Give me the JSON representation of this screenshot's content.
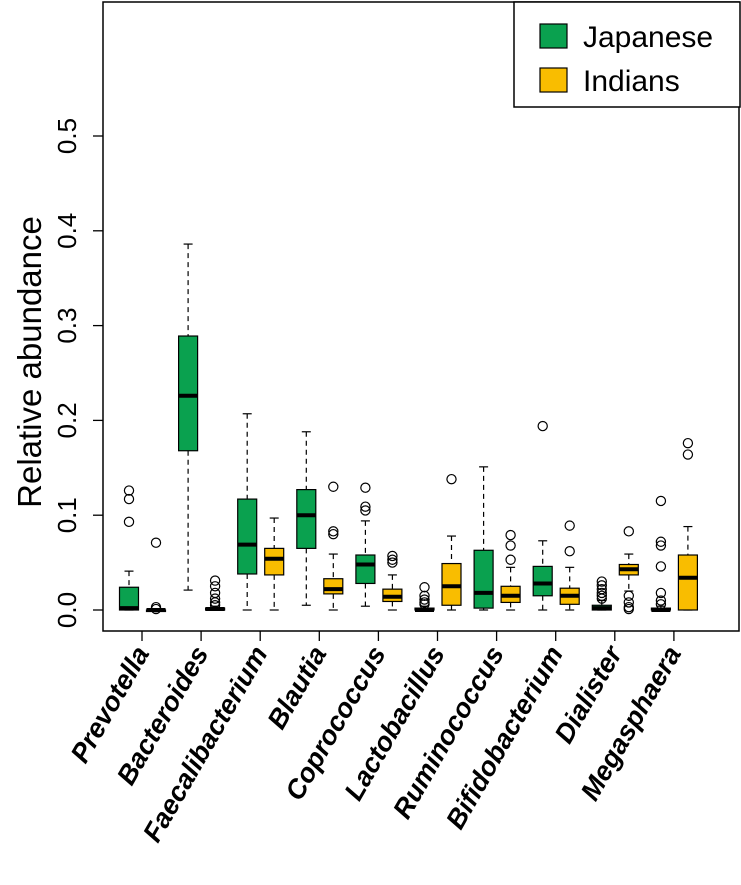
{
  "chart_data": {
    "type": "boxplot",
    "ylabel": "Relative abundance",
    "xlabel": "",
    "ylim": [
      -0.02,
      0.65
    ],
    "yticks": [
      0.0,
      0.1,
      0.2,
      0.3,
      0.4,
      0.5
    ],
    "ytick_labels": [
      "0.0",
      "0.1",
      "0.2",
      "0.3",
      "0.4",
      "0.5"
    ],
    "legend_position": "top-right",
    "colors": {
      "Japanese": "#0aa14f",
      "Indians": "#f9bd00"
    },
    "categories": [
      "Prevotella",
      "Bacteroides",
      "Faecalibacterium",
      "Blautia",
      "Coprococcus",
      "Lactobacillus",
      "Ruminococcus",
      "Bifidobacterium",
      "Dialister",
      "Megasphaera"
    ],
    "series": [
      {
        "name": "Japanese",
        "boxes": [
          {
            "min": 0.0,
            "q1": 0.0,
            "median": 0.002,
            "q3": 0.024,
            "max": 0.041,
            "outliers": [
              0.126,
              0.117,
              0.093
            ]
          },
          {
            "min": 0.021,
            "q1": 0.168,
            "median": 0.226,
            "q3": 0.289,
            "max": 0.386,
            "outliers": []
          },
          {
            "min": 0.0,
            "q1": 0.038,
            "median": 0.069,
            "q3": 0.117,
            "max": 0.207,
            "outliers": []
          },
          {
            "min": 0.005,
            "q1": 0.065,
            "median": 0.1,
            "q3": 0.127,
            "max": 0.188,
            "outliers": []
          },
          {
            "min": 0.004,
            "q1": 0.028,
            "median": 0.048,
            "q3": 0.058,
            "max": 0.094,
            "outliers": [
              0.129,
              0.109,
              0.105
            ]
          },
          {
            "min": 0.0,
            "q1": 0.0,
            "median": 0.0,
            "q3": 0.002,
            "max": 0.004,
            "outliers": [
              0.024,
              0.015,
              0.011,
              0.008,
              0.006
            ]
          },
          {
            "min": 0.0,
            "q1": 0.002,
            "median": 0.018,
            "q3": 0.063,
            "max": 0.151,
            "outliers": []
          },
          {
            "min": 0.0,
            "q1": 0.015,
            "median": 0.028,
            "q3": 0.046,
            "max": 0.073,
            "outliers": [
              0.194
            ]
          },
          {
            "min": 0.0,
            "q1": 0.0,
            "median": 0.002,
            "q3": 0.005,
            "max": 0.01,
            "outliers": [
              0.03,
              0.026,
              0.022,
              0.018,
              0.015,
              0.012
            ]
          },
          {
            "min": 0.0,
            "q1": 0.0,
            "median": 0.0,
            "q3": 0.002,
            "max": 0.004,
            "outliers": [
              0.115,
              0.072,
              0.068,
              0.046,
              0.018,
              0.01,
              0.006
            ]
          }
        ]
      },
      {
        "name": "Indians",
        "boxes": [
          {
            "min": 0.0,
            "q1": 0.0,
            "median": 0.0,
            "q3": 0.0,
            "max": 0.0,
            "outliers": [
              0.071,
              0.003,
              0.001
            ]
          },
          {
            "min": 0.0,
            "q1": 0.0,
            "median": 0.001,
            "q3": 0.002,
            "max": 0.004,
            "outliers": [
              0.031,
              0.025,
              0.018,
              0.012,
              0.008,
              0.005
            ]
          },
          {
            "min": 0.0,
            "q1": 0.037,
            "median": 0.054,
            "q3": 0.065,
            "max": 0.097,
            "outliers": []
          },
          {
            "min": 0.0,
            "q1": 0.017,
            "median": 0.022,
            "q3": 0.033,
            "max": 0.059,
            "outliers": [
              0.13,
              0.083,
              0.08
            ]
          },
          {
            "min": 0.0,
            "q1": 0.009,
            "median": 0.014,
            "q3": 0.022,
            "max": 0.037,
            "outliers": [
              0.057,
              0.053,
              0.05
            ]
          },
          {
            "min": 0.0,
            "q1": 0.005,
            "median": 0.025,
            "q3": 0.049,
            "max": 0.078,
            "outliers": [
              0.138
            ]
          },
          {
            "min": 0.0,
            "q1": 0.008,
            "median": 0.015,
            "q3": 0.025,
            "max": 0.045,
            "outliers": [
              0.079,
              0.068,
              0.053
            ]
          },
          {
            "min": 0.0,
            "q1": 0.006,
            "median": 0.015,
            "q3": 0.023,
            "max": 0.045,
            "outliers": [
              0.089,
              0.062
            ]
          },
          {
            "min": 0.02,
            "q1": 0.037,
            "median": 0.043,
            "q3": 0.048,
            "max": 0.059,
            "outliers": [
              0.083,
              0.015,
              0.008,
              0.003,
              0.001
            ]
          },
          {
            "min": 0.0,
            "q1": 0.0,
            "median": 0.034,
            "q3": 0.058,
            "max": 0.088,
            "outliers": [
              0.176,
              0.164
            ]
          }
        ]
      }
    ]
  }
}
